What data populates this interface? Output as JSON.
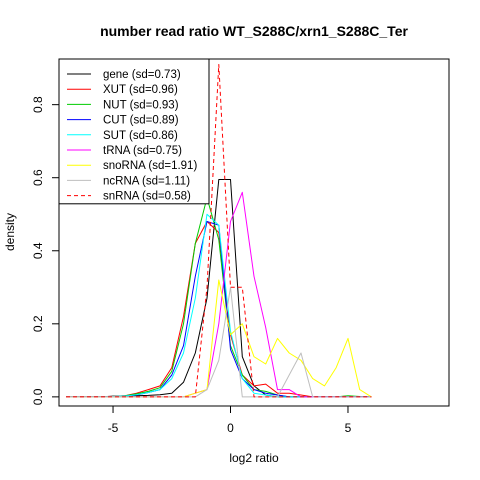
{
  "chart_data": {
    "type": "line",
    "title": "number read ratio WT_S288C/xrn1_S288C_Ter",
    "xlabel": "log2 ratio",
    "ylabel": "density",
    "xlim": [
      -7.3,
      9.3
    ],
    "ylim": [
      -0.025,
      0.925
    ],
    "xticks": [
      -5,
      0,
      5
    ],
    "yticks": [
      0.0,
      0.2,
      0.4,
      0.6,
      0.8
    ],
    "grid": false,
    "legend_position": "top-left",
    "series": [
      {
        "name": "gene (sd=0.73)",
        "color": "#000000",
        "dash": "solid",
        "points": [
          [
            -7,
            0
          ],
          [
            -6.5,
            0
          ],
          [
            -6,
            0
          ],
          [
            -5.5,
            0
          ],
          [
            -5,
            0.002
          ],
          [
            -4.5,
            0.002
          ],
          [
            -4,
            0.003
          ],
          [
            -3.5,
            0.004
          ],
          [
            -3,
            0.006
          ],
          [
            -2.5,
            0.01
          ],
          [
            -2,
            0.04
          ],
          [
            -1.5,
            0.12
          ],
          [
            -1,
            0.27
          ],
          [
            -0.5,
            0.595
          ],
          [
            0,
            0.595
          ],
          [
            0.5,
            0.11
          ],
          [
            1,
            0.03
          ],
          [
            1.5,
            0.005
          ],
          [
            2,
            0
          ],
          [
            2.5,
            0
          ],
          [
            3,
            0
          ],
          [
            3.5,
            0
          ],
          [
            4,
            0
          ],
          [
            4.5,
            0
          ],
          [
            5,
            0
          ],
          [
            5.5,
            0
          ],
          [
            6,
            0
          ]
        ]
      },
      {
        "name": "XUT (sd=0.96)",
        "color": "#ff0000",
        "dash": "solid",
        "points": [
          [
            -7,
            0
          ],
          [
            -6.5,
            0
          ],
          [
            -6,
            0
          ],
          [
            -5.5,
            0
          ],
          [
            -5,
            0.001
          ],
          [
            -4.5,
            0.003
          ],
          [
            -4,
            0.01
          ],
          [
            -3.5,
            0.02
          ],
          [
            -3,
            0.03
          ],
          [
            -2.5,
            0.08
          ],
          [
            -2,
            0.22
          ],
          [
            -1.5,
            0.42
          ],
          [
            -1,
            0.48
          ],
          [
            -0.5,
            0.45
          ],
          [
            0,
            0.17
          ],
          [
            0.5,
            0.06
          ],
          [
            1,
            0.03
          ],
          [
            1.5,
            0.035
          ],
          [
            2,
            0.01
          ],
          [
            2.5,
            0.01
          ],
          [
            3,
            0.005
          ],
          [
            3.5,
            0
          ],
          [
            4,
            0
          ],
          [
            4.5,
            0
          ],
          [
            5,
            0.002
          ],
          [
            5.5,
            0
          ],
          [
            6,
            0
          ]
        ]
      },
      {
        "name": "NUT (sd=0.93)",
        "color": "#00cc00",
        "dash": "solid",
        "points": [
          [
            -7,
            0
          ],
          [
            -6.5,
            0
          ],
          [
            -6,
            0
          ],
          [
            -5.5,
            0
          ],
          [
            -5,
            0.001
          ],
          [
            -4.5,
            0.003
          ],
          [
            -4,
            0.008
          ],
          [
            -3.5,
            0.015
          ],
          [
            -3,
            0.025
          ],
          [
            -2.5,
            0.07
          ],
          [
            -2,
            0.2
          ],
          [
            -1.5,
            0.42
          ],
          [
            -1,
            0.545
          ],
          [
            -0.5,
            0.43
          ],
          [
            0,
            0.14
          ],
          [
            0.5,
            0.06
          ],
          [
            1,
            0.02
          ],
          [
            1.5,
            0.015
          ],
          [
            2,
            0.005
          ],
          [
            2.5,
            0
          ],
          [
            3,
            0
          ],
          [
            3.5,
            0
          ],
          [
            4,
            0
          ],
          [
            4.5,
            0
          ],
          [
            5,
            0.003
          ],
          [
            5.5,
            0.001
          ],
          [
            6,
            0
          ]
        ]
      },
      {
        "name": "CUT (sd=0.89)",
        "color": "#0000ff",
        "dash": "solid",
        "points": [
          [
            -7,
            0
          ],
          [
            -6.5,
            0
          ],
          [
            -6,
            0
          ],
          [
            -5.5,
            0
          ],
          [
            -5,
            0.001
          ],
          [
            -4.5,
            0.002
          ],
          [
            -4,
            0.005
          ],
          [
            -3.5,
            0.012
          ],
          [
            -3,
            0.02
          ],
          [
            -2.5,
            0.06
          ],
          [
            -2,
            0.14
          ],
          [
            -1.5,
            0.33
          ],
          [
            -1,
            0.48
          ],
          [
            -0.5,
            0.47
          ],
          [
            0,
            0.13
          ],
          [
            0.5,
            0.05
          ],
          [
            1,
            0.02
          ],
          [
            1.5,
            0.01
          ],
          [
            2,
            0.005
          ],
          [
            2.5,
            0
          ],
          [
            3,
            0
          ],
          [
            3.5,
            0
          ],
          [
            4,
            0
          ],
          [
            4.5,
            0
          ],
          [
            5,
            0
          ],
          [
            5.5,
            0
          ],
          [
            6,
            0
          ]
        ]
      },
      {
        "name": "SUT (sd=0.86)",
        "color": "#00ffff",
        "dash": "solid",
        "points": [
          [
            -7,
            0
          ],
          [
            -6.5,
            0
          ],
          [
            -6,
            0
          ],
          [
            -5.5,
            0
          ],
          [
            -5,
            0.001
          ],
          [
            -4.5,
            0.002
          ],
          [
            -4,
            0.006
          ],
          [
            -3.5,
            0.012
          ],
          [
            -3,
            0.02
          ],
          [
            -2.5,
            0.05
          ],
          [
            -2,
            0.12
          ],
          [
            -1.5,
            0.27
          ],
          [
            -1,
            0.5
          ],
          [
            -0.5,
            0.47
          ],
          [
            0,
            0.18
          ],
          [
            0.5,
            0.05
          ],
          [
            1,
            0.01
          ],
          [
            1.5,
            0.005
          ],
          [
            2,
            0
          ],
          [
            2.5,
            0
          ],
          [
            3,
            0
          ],
          [
            3.5,
            0
          ],
          [
            4,
            0
          ],
          [
            4.5,
            0
          ],
          [
            5,
            0
          ],
          [
            5.5,
            0
          ],
          [
            6,
            0
          ]
        ]
      },
      {
        "name": "tRNA (sd=0.75)",
        "color": "#ff00ff",
        "dash": "solid",
        "points": [
          [
            -7,
            0
          ],
          [
            -6.5,
            0
          ],
          [
            -6,
            0
          ],
          [
            -5.5,
            0
          ],
          [
            -5,
            0
          ],
          [
            -4.5,
            0
          ],
          [
            -4,
            0
          ],
          [
            -3.5,
            0
          ],
          [
            -3,
            0
          ],
          [
            -2.5,
            0
          ],
          [
            -2,
            0
          ],
          [
            -1.5,
            0.01
          ],
          [
            -1,
            0.02
          ],
          [
            -0.5,
            0.2
          ],
          [
            0,
            0.48
          ],
          [
            0.5,
            0.56
          ],
          [
            1,
            0.33
          ],
          [
            1.5,
            0.19
          ],
          [
            2,
            0.02
          ],
          [
            2.5,
            0.02
          ],
          [
            3,
            0
          ],
          [
            3.5,
            0
          ],
          [
            4,
            0
          ],
          [
            4.5,
            0
          ],
          [
            5,
            0
          ],
          [
            5.5,
            0
          ],
          [
            6,
            0
          ]
        ]
      },
      {
        "name": "snoRNA (sd=1.91)",
        "color": "#ffff00",
        "dash": "solid",
        "points": [
          [
            -7,
            0
          ],
          [
            -6.5,
            0
          ],
          [
            -6,
            0
          ],
          [
            -5.5,
            0
          ],
          [
            -5,
            0
          ],
          [
            -4.5,
            0
          ],
          [
            -4,
            0
          ],
          [
            -3.5,
            0
          ],
          [
            -3,
            0
          ],
          [
            -2.5,
            0
          ],
          [
            -2,
            0
          ],
          [
            -1.5,
            0.01
          ],
          [
            -1,
            0.02
          ],
          [
            -0.5,
            0.32
          ],
          [
            0,
            0.17
          ],
          [
            0.5,
            0.2
          ],
          [
            1,
            0.11
          ],
          [
            1.5,
            0.09
          ],
          [
            2,
            0.16
          ],
          [
            2.5,
            0.12
          ],
          [
            3,
            0.1
          ],
          [
            3.5,
            0.05
          ],
          [
            4,
            0.03
          ],
          [
            4.5,
            0.08
          ],
          [
            5,
            0.16
          ],
          [
            5.5,
            0.02
          ],
          [
            6,
            0
          ]
        ]
      },
      {
        "name": "ncRNA (sd=1.11)",
        "color": "#bebebe",
        "dash": "solid",
        "points": [
          [
            -7,
            0
          ],
          [
            -6.5,
            0
          ],
          [
            -6,
            0
          ],
          [
            -5.5,
            0
          ],
          [
            -5,
            0
          ],
          [
            -4.5,
            0
          ],
          [
            -4,
            0
          ],
          [
            -3.5,
            0
          ],
          [
            -3,
            0
          ],
          [
            -2.5,
            0
          ],
          [
            -2,
            0
          ],
          [
            -1.5,
            0
          ],
          [
            -1,
            0.02
          ],
          [
            -0.5,
            0.1
          ],
          [
            0,
            0.3
          ],
          [
            0.5,
            0
          ],
          [
            1,
            0
          ],
          [
            1.5,
            0
          ],
          [
            2,
            0
          ],
          [
            2.5,
            0.06
          ],
          [
            3,
            0.12
          ],
          [
            3.5,
            0
          ],
          [
            4,
            0
          ],
          [
            4.5,
            0
          ],
          [
            5,
            0
          ],
          [
            5.5,
            0
          ],
          [
            6,
            0
          ]
        ]
      },
      {
        "name": "snRNA (sd=0.58)",
        "color": "#ff0000",
        "dash": "dashed",
        "points": [
          [
            -7,
            0
          ],
          [
            -6.5,
            0
          ],
          [
            -6,
            0
          ],
          [
            -5.5,
            0
          ],
          [
            -5,
            0
          ],
          [
            -4.5,
            0
          ],
          [
            -4,
            0
          ],
          [
            -3.5,
            0
          ],
          [
            -3,
            0
          ],
          [
            -2.5,
            0
          ],
          [
            -2,
            0
          ],
          [
            -1.5,
            0
          ],
          [
            -1,
            0.3
          ],
          [
            -0.5,
            0.91
          ],
          [
            0,
            0.3
          ],
          [
            0.5,
            0.3
          ],
          [
            1,
            0
          ],
          [
            1.5,
            0
          ],
          [
            2,
            0
          ],
          [
            2.5,
            0
          ],
          [
            3,
            0
          ],
          [
            3.5,
            0
          ],
          [
            4,
            0
          ],
          [
            4.5,
            0
          ],
          [
            5,
            0
          ],
          [
            5.5,
            0
          ],
          [
            6,
            0
          ]
        ]
      }
    ]
  }
}
